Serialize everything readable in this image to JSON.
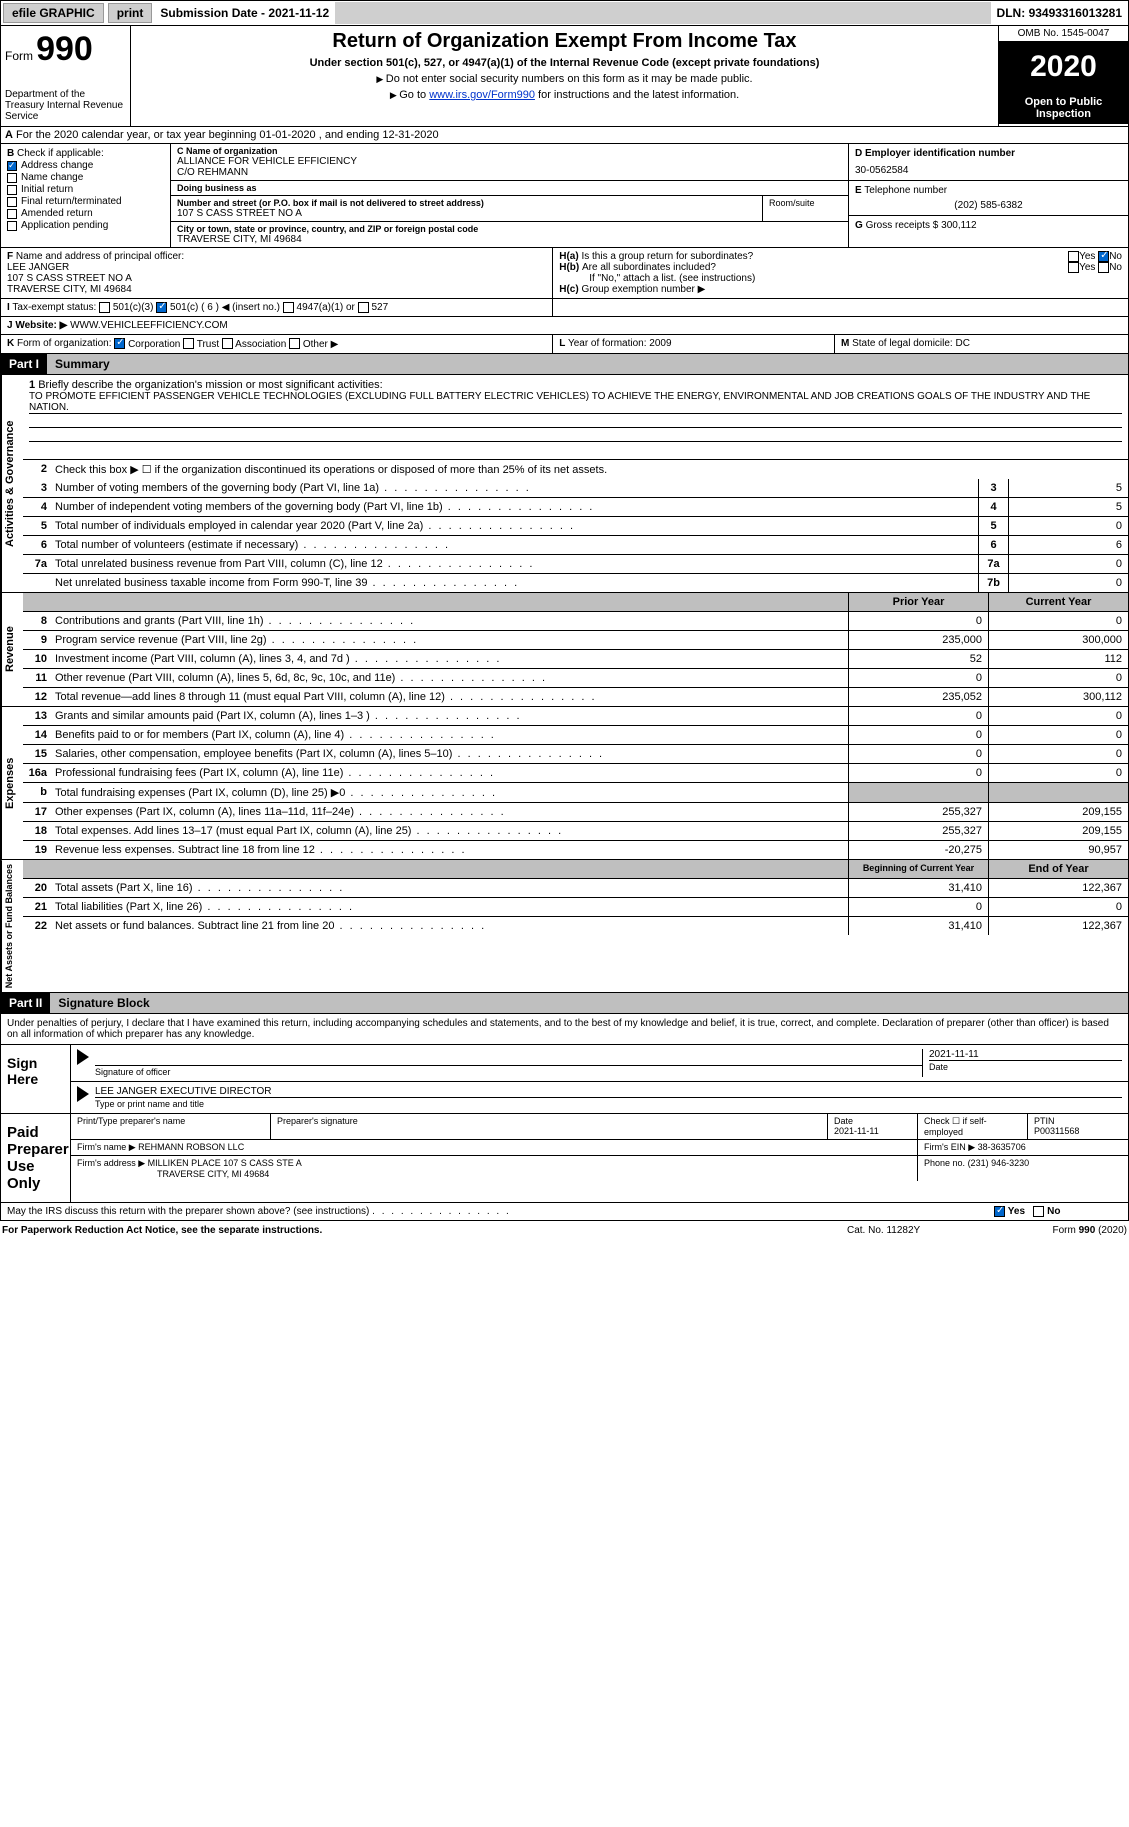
{
  "topbar": {
    "efile": "efile GRAPHIC",
    "print": "print",
    "subdate_label": "Submission Date -",
    "subdate": "2021-11-12",
    "dln_label": "DLN:",
    "dln": "93493316013281"
  },
  "header": {
    "form_prefix": "Form",
    "form_num": "990",
    "dept": "Department of the Treasury\nInternal Revenue Service",
    "title": "Return of Organization Exempt From Income Tax",
    "sub": "Under section 501(c), 527, or 4947(a)(1) of the Internal Revenue Code (except private foundations)",
    "note1": "Do not enter social security numbers on this form as it may be made public.",
    "note2_pre": "Go to ",
    "note2_link": "www.irs.gov/Form990",
    "note2_post": " for instructions and the latest information.",
    "omb": "OMB No. 1545-0047",
    "year": "2020",
    "open": "Open to Public Inspection"
  },
  "sectionA": {
    "text": "For the 2020 calendar year, or tax year beginning 01-01-2020    , and ending 12-31-2020"
  },
  "boxB": {
    "label": "Check if applicable:",
    "items": [
      {
        "label": "Address change",
        "checked": true
      },
      {
        "label": "Name change",
        "checked": false
      },
      {
        "label": "Initial return",
        "checked": false
      },
      {
        "label": "Final return/terminated",
        "checked": false
      },
      {
        "label": "Amended return",
        "checked": false
      },
      {
        "label": "Application pending",
        "checked": false
      }
    ]
  },
  "boxC": {
    "name_label": "Name of organization",
    "name1": "ALLIANCE FOR VEHICLE EFFICIENCY",
    "name2": "C/O REHMANN",
    "dba_label": "Doing business as",
    "dba": "",
    "addr_label": "Number and street (or P.O. box if mail is not delivered to street address)",
    "addr": "107 S CASS STREET NO A",
    "room_label": "Room/suite",
    "room": "",
    "city_label": "City or town, state or province, country, and ZIP or foreign postal code",
    "city": "TRAVERSE CITY, MI  49684"
  },
  "boxD": {
    "label": "Employer identification number",
    "value": "30-0562584"
  },
  "boxE": {
    "label": "Telephone number",
    "value": "(202) 585-6382"
  },
  "boxG": {
    "label": "Gross receipts $",
    "value": "300,112"
  },
  "boxF": {
    "label": "Name and address of principal officer:",
    "name": "LEE JANGER",
    "addr1": "107 S CASS STREET NO A",
    "addr2": "TRAVERSE CITY, MI  49684"
  },
  "boxH": {
    "a": "Is this a group return for subordinates?",
    "b": "Are all subordinates included?",
    "b_note": "If \"No,\" attach a list. (see instructions)",
    "c": "Group exemption number ▶"
  },
  "taxexempt": {
    "label": "Tax-exempt status:",
    "opts": [
      "501(c)(3)",
      "501(c) ( 6 ) ◀ (insert no.)",
      "4947(a)(1) or",
      "527"
    ]
  },
  "website": {
    "label": "Website: ▶",
    "value": "WWW.VEHICLEEFFICIENCY.COM"
  },
  "boxK": {
    "label": "Form of organization:",
    "opts": [
      "Corporation",
      "Trust",
      "Association",
      "Other ▶"
    ]
  },
  "boxL": {
    "label": "Year of formation:",
    "value": "2009"
  },
  "boxM": {
    "label": "State of legal domicile:",
    "value": "DC"
  },
  "parts": {
    "p1_num": "Part I",
    "p1_title": "Summary",
    "p2_num": "Part II",
    "p2_title": "Signature Block"
  },
  "mission": {
    "label": "Briefly describe the organization's mission or most significant activities:",
    "text": "TO PROMOTE EFFICIENT PASSENGER VEHICLE TECHNOLOGIES (EXCLUDING FULL BATTERY ELECTRIC VEHICLES) TO ACHIEVE THE ENERGY, ENVIRONMENTAL AND JOB CREATIONS GOALS OF THE INDUSTRY AND THE NATION."
  },
  "gov_lines": {
    "l2": "Check this box ▶ ☐  if the organization discontinued its operations or disposed of more than 25% of its net assets.",
    "l3": {
      "text": "Number of voting members of the governing body (Part VI, line 1a)",
      "box": "3",
      "val": "5"
    },
    "l4": {
      "text": "Number of independent voting members of the governing body (Part VI, line 1b)",
      "box": "4",
      "val": "5"
    },
    "l5": {
      "text": "Total number of individuals employed in calendar year 2020 (Part V, line 2a)",
      "box": "5",
      "val": "0"
    },
    "l6": {
      "text": "Total number of volunteers (estimate if necessary)",
      "box": "6",
      "val": "6"
    },
    "l7a": {
      "text": "Total unrelated business revenue from Part VIII, column (C), line 12",
      "box": "7a",
      "val": "0"
    },
    "l7b": {
      "text": "Net unrelated business taxable income from Form 990-T, line 39",
      "box": "7b",
      "val": "0"
    }
  },
  "twocol_hdr": {
    "prior": "Prior Year",
    "current": "Current Year"
  },
  "revenue": [
    {
      "n": "8",
      "t": "Contributions and grants (Part VIII, line 1h)",
      "p": "0",
      "c": "0"
    },
    {
      "n": "9",
      "t": "Program service revenue (Part VIII, line 2g)",
      "p": "235,000",
      "c": "300,000"
    },
    {
      "n": "10",
      "t": "Investment income (Part VIII, column (A), lines 3, 4, and 7d )",
      "p": "52",
      "c": "112"
    },
    {
      "n": "11",
      "t": "Other revenue (Part VIII, column (A), lines 5, 6d, 8c, 9c, 10c, and 11e)",
      "p": "0",
      "c": "0"
    },
    {
      "n": "12",
      "t": "Total revenue—add lines 8 through 11 (must equal Part VIII, column (A), line 12)",
      "p": "235,052",
      "c": "300,112"
    }
  ],
  "expenses": [
    {
      "n": "13",
      "t": "Grants and similar amounts paid (Part IX, column (A), lines 1–3 )",
      "p": "0",
      "c": "0"
    },
    {
      "n": "14",
      "t": "Benefits paid to or for members (Part IX, column (A), line 4)",
      "p": "0",
      "c": "0"
    },
    {
      "n": "15",
      "t": "Salaries, other compensation, employee benefits (Part IX, column (A), lines 5–10)",
      "p": "0",
      "c": "0"
    },
    {
      "n": "16a",
      "t": "Professional fundraising fees (Part IX, column (A), line 11e)",
      "p": "0",
      "c": "0"
    },
    {
      "n": "b",
      "t": "Total fundraising expenses (Part IX, column (D), line 25) ▶0",
      "p": "",
      "c": "",
      "shaded": true
    },
    {
      "n": "17",
      "t": "Other expenses (Part IX, column (A), lines 11a–11d, 11f–24e)",
      "p": "255,327",
      "c": "209,155"
    },
    {
      "n": "18",
      "t": "Total expenses. Add lines 13–17 (must equal Part IX, column (A), line 25)",
      "p": "255,327",
      "c": "209,155"
    },
    {
      "n": "19",
      "t": "Revenue less expenses. Subtract line 18 from line 12",
      "p": "-20,275",
      "c": "90,957"
    }
  ],
  "netassets_hdr": {
    "begin": "Beginning of Current Year",
    "end": "End of Year"
  },
  "netassets": [
    {
      "n": "20",
      "t": "Total assets (Part X, line 16)",
      "p": "31,410",
      "c": "122,367"
    },
    {
      "n": "21",
      "t": "Total liabilities (Part X, line 26)",
      "p": "0",
      "c": "0"
    },
    {
      "n": "22",
      "t": "Net assets or fund balances. Subtract line 21 from line 20",
      "p": "31,410",
      "c": "122,367"
    }
  ],
  "sig": {
    "decl": "Under penalties of perjury, I declare that I have examined this return, including accompanying schedules and statements, and to the best of my knowledge and belief, it is true, correct, and complete. Declaration of preparer (other than officer) is based on all information of which preparer has any knowledge.",
    "sign_here": "Sign Here",
    "sig_officer": "Signature of officer",
    "date": "Date",
    "date_val": "2021-11-11",
    "name": "LEE JANGER  EXECUTIVE DIRECTOR",
    "name_label": "Type or print name and title",
    "paid": "Paid Preparer Use Only",
    "prep_name": "Print/Type preparer's name",
    "prep_sig": "Preparer's signature",
    "prep_date": "Date",
    "prep_date_val": "2021-11-11",
    "check_self": "Check ☐ if self-employed",
    "ptin_label": "PTIN",
    "ptin": "P00311568",
    "firm_name_label": "Firm's name    ▶",
    "firm_name": "REHMANN ROBSON LLC",
    "firm_ein_label": "Firm's EIN ▶",
    "firm_ein": "38-3635706",
    "firm_addr_label": "Firm's address ▶",
    "firm_addr1": "MILLIKEN PLACE 107 S CASS STE A",
    "firm_addr2": "TRAVERSE CITY, MI  49684",
    "phone_label": "Phone no.",
    "phone": "(231) 946-3230",
    "may_irs": "May the IRS discuss this return with the preparer shown above? (see instructions)"
  },
  "footer": {
    "left": "For Paperwork Reduction Act Notice, see the separate instructions.",
    "mid": "Cat. No. 11282Y",
    "right": "Form 990 (2020)",
    "right_bold": "990"
  },
  "vlabels": {
    "gov": "Activities & Governance",
    "rev": "Revenue",
    "exp": "Expenses",
    "net": "Net Assets or Fund Balances"
  }
}
